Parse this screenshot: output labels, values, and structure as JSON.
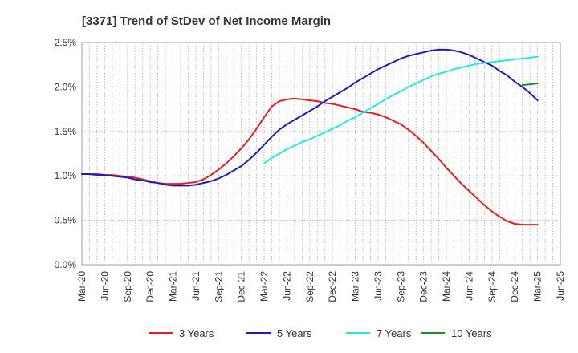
{
  "chart_data": {
    "type": "line",
    "title": "[3371]  Trend of StDev of Net Income Margin",
    "xlabel": "",
    "ylabel": "",
    "x_ticks": [
      "Mar-20",
      "Jun-20",
      "Sep-20",
      "Dec-20",
      "Mar-21",
      "Jun-21",
      "Sep-21",
      "Dec-21",
      "Mar-22",
      "Jun-22",
      "Sep-22",
      "Dec-22",
      "Mar-23",
      "Jun-23",
      "Sep-23",
      "Dec-23",
      "Mar-24",
      "Jun-24",
      "Sep-24",
      "Dec-24",
      "Mar-25",
      "Jun-25"
    ],
    "y_ticks": [
      0,
      0.5,
      1.0,
      1.5,
      2.0,
      2.5
    ],
    "y_tick_labels": [
      "0.0%",
      "0.5%",
      "1.0%",
      "1.5%",
      "2.0%",
      "2.5%"
    ],
    "ylim": [
      0,
      2.5
    ],
    "y_unit": "%",
    "grid": true,
    "legend_position": "bottom",
    "series": [
      {
        "name": "3 Years",
        "color": "#e02020",
        "x": [
          "Mar-20",
          "Apr-20",
          "May-20",
          "Jun-20",
          "Jul-20",
          "Aug-20",
          "Sep-20",
          "Oct-20",
          "Nov-20",
          "Dec-20",
          "Jan-21",
          "Feb-21",
          "Mar-21",
          "Apr-21",
          "May-21",
          "Jun-21",
          "Jul-21",
          "Aug-21",
          "Sep-21",
          "Oct-21",
          "Nov-21",
          "Dec-21",
          "Jan-22",
          "Feb-22",
          "Mar-22",
          "Apr-22",
          "May-22",
          "Jun-22",
          "Jul-22",
          "Aug-22",
          "Sep-22",
          "Oct-22",
          "Nov-22",
          "Dec-22",
          "Jan-23",
          "Feb-23",
          "Mar-23",
          "Apr-23",
          "May-23",
          "Jun-23",
          "Jul-23",
          "Aug-23",
          "Sep-23",
          "Oct-23",
          "Nov-23",
          "Dec-23",
          "Jan-24",
          "Feb-24",
          "Mar-24",
          "Apr-24",
          "May-24",
          "Jun-24",
          "Jul-24",
          "Aug-24",
          "Sep-24",
          "Oct-24",
          "Nov-24",
          "Dec-24",
          "Jan-25",
          "Feb-25",
          "Mar-25"
        ],
        "values": [
          1.02,
          1.02,
          1.02,
          1.01,
          1.01,
          1.0,
          0.99,
          0.98,
          0.96,
          0.94,
          0.92,
          0.91,
          0.91,
          0.91,
          0.92,
          0.93,
          0.96,
          1.01,
          1.07,
          1.14,
          1.22,
          1.31,
          1.41,
          1.53,
          1.66,
          1.78,
          1.84,
          1.86,
          1.87,
          1.86,
          1.85,
          1.84,
          1.82,
          1.81,
          1.79,
          1.77,
          1.75,
          1.72,
          1.71,
          1.69,
          1.66,
          1.62,
          1.58,
          1.52,
          1.45,
          1.37,
          1.28,
          1.19,
          1.09,
          1.0,
          0.91,
          0.83,
          0.75,
          0.67,
          0.6,
          0.54,
          0.49,
          0.46,
          0.45,
          0.45,
          0.45
        ]
      },
      {
        "name": "5 Years",
        "color": "#1c1cc0",
        "x": [
          "Mar-20",
          "Apr-20",
          "May-20",
          "Jun-20",
          "Jul-20",
          "Aug-20",
          "Sep-20",
          "Oct-20",
          "Nov-20",
          "Dec-20",
          "Jan-21",
          "Feb-21",
          "Mar-21",
          "Apr-21",
          "May-21",
          "Jun-21",
          "Jul-21",
          "Aug-21",
          "Sep-21",
          "Oct-21",
          "Nov-21",
          "Dec-21",
          "Jan-22",
          "Feb-22",
          "Mar-22",
          "Apr-22",
          "May-22",
          "Jun-22",
          "Jul-22",
          "Aug-22",
          "Sep-22",
          "Oct-22",
          "Nov-22",
          "Dec-22",
          "Jan-23",
          "Feb-23",
          "Mar-23",
          "Apr-23",
          "May-23",
          "Jun-23",
          "Jul-23",
          "Aug-23",
          "Sep-23",
          "Oct-23",
          "Nov-23",
          "Dec-23",
          "Jan-24",
          "Feb-24",
          "Mar-24",
          "Apr-24",
          "May-24",
          "Jun-24",
          "Jul-24",
          "Aug-24",
          "Sep-24",
          "Oct-24",
          "Nov-24",
          "Dec-24",
          "Jan-25",
          "Feb-25",
          "Mar-25"
        ],
        "values": [
          1.02,
          1.02,
          1.01,
          1.01,
          1.0,
          0.99,
          0.98,
          0.96,
          0.95,
          0.93,
          0.92,
          0.9,
          0.89,
          0.89,
          0.89,
          0.9,
          0.92,
          0.94,
          0.97,
          1.01,
          1.06,
          1.11,
          1.18,
          1.26,
          1.35,
          1.44,
          1.52,
          1.58,
          1.63,
          1.68,
          1.73,
          1.78,
          1.84,
          1.89,
          1.94,
          1.99,
          2.05,
          2.1,
          2.15,
          2.2,
          2.24,
          2.28,
          2.32,
          2.35,
          2.37,
          2.39,
          2.41,
          2.42,
          2.42,
          2.41,
          2.39,
          2.36,
          2.32,
          2.28,
          2.24,
          2.18,
          2.13,
          2.06,
          2.0,
          1.93,
          1.85
        ]
      },
      {
        "name": "7 Years",
        "color": "#22e8e8",
        "x": [
          "Mar-22",
          "Apr-22",
          "May-22",
          "Jun-22",
          "Jul-22",
          "Aug-22",
          "Sep-22",
          "Oct-22",
          "Nov-22",
          "Dec-22",
          "Jan-23",
          "Feb-23",
          "Mar-23",
          "Apr-23",
          "May-23",
          "Jun-23",
          "Jul-23",
          "Aug-23",
          "Sep-23",
          "Oct-23",
          "Nov-23",
          "Dec-23",
          "Jan-24",
          "Feb-24",
          "Mar-24",
          "Apr-24",
          "May-24",
          "Jun-24",
          "Jul-24",
          "Aug-24",
          "Sep-24",
          "Oct-24",
          "Nov-24",
          "Dec-24",
          "Jan-25",
          "Feb-25",
          "Mar-25"
        ],
        "values": [
          1.14,
          1.2,
          1.25,
          1.3,
          1.34,
          1.38,
          1.41,
          1.45,
          1.49,
          1.53,
          1.57,
          1.62,
          1.66,
          1.71,
          1.76,
          1.81,
          1.86,
          1.91,
          1.95,
          2.0,
          2.04,
          2.08,
          2.12,
          2.15,
          2.17,
          2.2,
          2.22,
          2.24,
          2.26,
          2.27,
          2.28,
          2.29,
          2.3,
          2.31,
          2.32,
          2.33,
          2.34
        ]
      },
      {
        "name": "10 Years",
        "color": "#228b22",
        "x": [
          "Jan-25",
          "Feb-25",
          "Mar-25"
        ],
        "values": [
          2.02,
          2.03,
          2.04
        ]
      }
    ]
  }
}
